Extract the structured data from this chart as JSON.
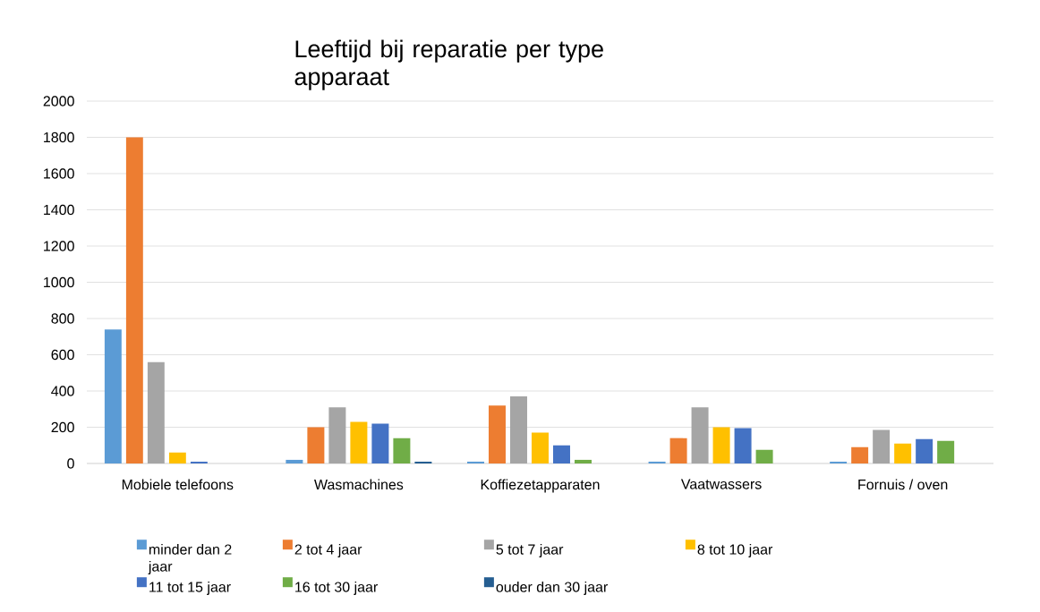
{
  "chart_data": {
    "type": "bar",
    "title": "Leeftijd bij reparatie per type apparaat",
    "categories": [
      "Mobiele telefoons",
      "Wasmachines",
      "Koffiezetapparaten",
      "Vaatwassers",
      "Fornuis / oven"
    ],
    "series": [
      {
        "name": "minder dan 2 jaar",
        "color": "#5b9bd5",
        "values": [
          740,
          20,
          10,
          10,
          10
        ]
      },
      {
        "name": "2 tot 4 jaar",
        "color": "#ed7d31",
        "values": [
          1800,
          200,
          320,
          140,
          90
        ]
      },
      {
        "name": "5 tot 7 jaar",
        "color": "#a5a5a5",
        "values": [
          560,
          310,
          370,
          310,
          185
        ]
      },
      {
        "name": "8 tot 10 jaar",
        "color": "#ffc000",
        "values": [
          60,
          230,
          170,
          200,
          110
        ]
      },
      {
        "name": "11 tot 15 jaar",
        "color": "#4472c4",
        "values": [
          10,
          220,
          100,
          195,
          135
        ]
      },
      {
        "name": "16 tot 30 jaar",
        "color": "#70ad47",
        "values": [
          0,
          140,
          20,
          75,
          125
        ]
      },
      {
        "name": "ouder dan 30 jaar",
        "color": "#255e91",
        "values": [
          0,
          10,
          0,
          0,
          0
        ]
      }
    ],
    "ylim": [
      0,
      2000
    ],
    "yticks": [
      0,
      200,
      400,
      600,
      800,
      1000,
      1200,
      1400,
      1600,
      1800,
      2000
    ],
    "grid": "y",
    "legend": "bottom"
  }
}
